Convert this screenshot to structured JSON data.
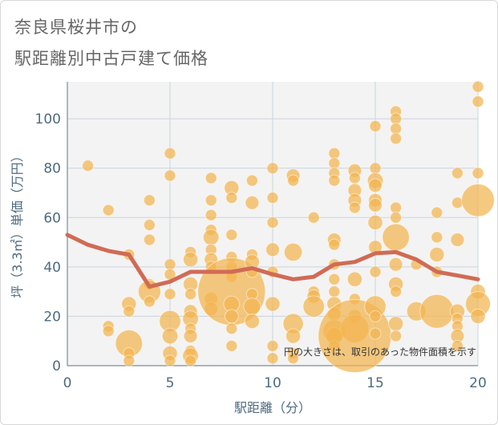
{
  "header": {
    "title_line1": "奈良県桜井市の",
    "title_line2": "駅距離別中古戸建て価格"
  },
  "chart_data": {
    "type": "scatter",
    "title": "奈良県桜井市の駅距離別中古戸建て価格",
    "xlabel": "駅距離（分）",
    "ylabel": "坪（3.3㎡）単価（万円）",
    "xlim": [
      0,
      20
    ],
    "ylim": [
      0,
      115
    ],
    "x_ticks": [
      0,
      5,
      10,
      15,
      20
    ],
    "y_ticks": [
      0,
      20,
      40,
      60,
      80,
      100
    ],
    "grid": true,
    "note": "円の大きさは、取引のあった物件面積を示す",
    "colors": {
      "bubble": "#f2b44f",
      "line": "#d06b55",
      "plot_bg": "#f3f3f3",
      "grid": "#c9d5de"
    },
    "bubbles": [
      {
        "x": 1,
        "y": 81,
        "s": 1
      },
      {
        "x": 2,
        "y": 63,
        "s": 1
      },
      {
        "x": 2,
        "y": 16,
        "s": 1
      },
      {
        "x": 2,
        "y": 14,
        "s": 1
      },
      {
        "x": 3,
        "y": 45,
        "s": 1
      },
      {
        "x": 3,
        "y": 25,
        "s": 1.3
      },
      {
        "x": 3,
        "y": 22,
        "s": 1
      },
      {
        "x": 3,
        "y": 9,
        "s": 2.4
      },
      {
        "x": 3,
        "y": 5,
        "s": 1
      },
      {
        "x": 3,
        "y": 2,
        "s": 1
      },
      {
        "x": 4,
        "y": 67,
        "s": 1
      },
      {
        "x": 4,
        "y": 57,
        "s": 1
      },
      {
        "x": 4,
        "y": 51,
        "s": 1
      },
      {
        "x": 4,
        "y": 33,
        "s": 1
      },
      {
        "x": 4,
        "y": 30,
        "s": 2.0
      },
      {
        "x": 4,
        "y": 26,
        "s": 1
      },
      {
        "x": 5,
        "y": 86,
        "s": 1
      },
      {
        "x": 5,
        "y": 77,
        "s": 1
      },
      {
        "x": 5,
        "y": 41,
        "s": 1
      },
      {
        "x": 5,
        "y": 37,
        "s": 1
      },
      {
        "x": 5,
        "y": 29,
        "s": 1
      },
      {
        "x": 5,
        "y": 18,
        "s": 1.9
      },
      {
        "x": 5,
        "y": 12,
        "s": 1.4
      },
      {
        "x": 5,
        "y": 5,
        "s": 1.3
      },
      {
        "x": 5,
        "y": 2,
        "s": 1
      },
      {
        "x": 6,
        "y": 46,
        "s": 1
      },
      {
        "x": 6,
        "y": 43,
        "s": 1.3
      },
      {
        "x": 6,
        "y": 33,
        "s": 1.3
      },
      {
        "x": 6,
        "y": 29,
        "s": 1
      },
      {
        "x": 6,
        "y": 22,
        "s": 1.2
      },
      {
        "x": 6,
        "y": 19,
        "s": 1.4
      },
      {
        "x": 6,
        "y": 15,
        "s": 1
      },
      {
        "x": 6,
        "y": 12,
        "s": 1.2
      },
      {
        "x": 6,
        "y": 6,
        "s": 1
      },
      {
        "x": 6,
        "y": 4,
        "s": 1.4
      },
      {
        "x": 6,
        "y": 2,
        "s": 1
      },
      {
        "x": 7,
        "y": 76,
        "s": 1
      },
      {
        "x": 7,
        "y": 67,
        "s": 1
      },
      {
        "x": 7,
        "y": 61,
        "s": 1
      },
      {
        "x": 7,
        "y": 55,
        "s": 1
      },
      {
        "x": 7,
        "y": 52,
        "s": 1.4
      },
      {
        "x": 7,
        "y": 47,
        "s": 1
      },
      {
        "x": 7,
        "y": 43,
        "s": 1.2
      },
      {
        "x": 7,
        "y": 40,
        "s": 1
      },
      {
        "x": 7,
        "y": 27,
        "s": 1.2
      },
      {
        "x": 7,
        "y": 23,
        "s": 1.2
      },
      {
        "x": 8,
        "y": 72,
        "s": 1.3
      },
      {
        "x": 8,
        "y": 68,
        "s": 1
      },
      {
        "x": 8,
        "y": 53,
        "s": 1
      },
      {
        "x": 8,
        "y": 44,
        "s": 1
      },
      {
        "x": 8,
        "y": 40,
        "s": 1
      },
      {
        "x": 8,
        "y": 36,
        "s": 1
      },
      {
        "x": 8,
        "y": 30,
        "s": 6.0
      },
      {
        "x": 8,
        "y": 25,
        "s": 1.4
      },
      {
        "x": 8,
        "y": 20,
        "s": 1.2
      },
      {
        "x": 8,
        "y": 15,
        "s": 1
      },
      {
        "x": 8,
        "y": 8,
        "s": 1
      },
      {
        "x": 9,
        "y": 75,
        "s": 1
      },
      {
        "x": 9,
        "y": 66,
        "s": 1.2
      },
      {
        "x": 9,
        "y": 45,
        "s": 1
      },
      {
        "x": 9,
        "y": 42,
        "s": 1.3
      },
      {
        "x": 9,
        "y": 38,
        "s": 1
      },
      {
        "x": 9,
        "y": 29,
        "s": 1
      },
      {
        "x": 9,
        "y": 24,
        "s": 1.5
      },
      {
        "x": 9,
        "y": 18,
        "s": 1.3
      },
      {
        "x": 10,
        "y": 80,
        "s": 1
      },
      {
        "x": 10,
        "y": 68,
        "s": 1
      },
      {
        "x": 10,
        "y": 58,
        "s": 1
      },
      {
        "x": 10,
        "y": 47,
        "s": 1.2
      },
      {
        "x": 10,
        "y": 38,
        "s": 1
      },
      {
        "x": 10,
        "y": 25,
        "s": 1.3
      },
      {
        "x": 10,
        "y": 8,
        "s": 1
      },
      {
        "x": 10,
        "y": 3,
        "s": 1
      },
      {
        "x": 11,
        "y": 77,
        "s": 1.2
      },
      {
        "x": 11,
        "y": 75,
        "s": 1
      },
      {
        "x": 11,
        "y": 46,
        "s": 1.6
      },
      {
        "x": 11,
        "y": 17,
        "s": 1.8
      },
      {
        "x": 11,
        "y": 12,
        "s": 1.3
      },
      {
        "x": 11,
        "y": 5,
        "s": 1
      },
      {
        "x": 11,
        "y": 3,
        "s": 1
      },
      {
        "x": 12,
        "y": 60,
        "s": 1
      },
      {
        "x": 12,
        "y": 30,
        "s": 1
      },
      {
        "x": 12,
        "y": 28,
        "s": 1.2
      },
      {
        "x": 12,
        "y": 24,
        "s": 1.9
      },
      {
        "x": 13,
        "y": 86,
        "s": 1
      },
      {
        "x": 13,
        "y": 82,
        "s": 1
      },
      {
        "x": 13,
        "y": 78,
        "s": 1
      },
      {
        "x": 13,
        "y": 75,
        "s": 1
      },
      {
        "x": 13,
        "y": 51,
        "s": 1.2
      },
      {
        "x": 13,
        "y": 49,
        "s": 1
      },
      {
        "x": 13,
        "y": 41,
        "s": 1
      },
      {
        "x": 13,
        "y": 35,
        "s": 1
      },
      {
        "x": 13,
        "y": 30,
        "s": 1
      },
      {
        "x": 13,
        "y": 25,
        "s": 1.3
      },
      {
        "x": 13,
        "y": 21,
        "s": 1.2
      },
      {
        "x": 13,
        "y": 14,
        "s": 2.0
      },
      {
        "x": 13,
        "y": 12,
        "s": 1.5
      },
      {
        "x": 13,
        "y": 8,
        "s": 1
      },
      {
        "x": 14,
        "y": 79,
        "s": 1.2
      },
      {
        "x": 14,
        "y": 76,
        "s": 1
      },
      {
        "x": 14,
        "y": 71,
        "s": 1.2
      },
      {
        "x": 14,
        "y": 67,
        "s": 1.2
      },
      {
        "x": 14,
        "y": 64,
        "s": 1
      },
      {
        "x": 14,
        "y": 35,
        "s": 1.3
      },
      {
        "x": 14,
        "y": 27,
        "s": 1
      },
      {
        "x": 14,
        "y": 20,
        "s": 1.2
      },
      {
        "x": 14,
        "y": 15,
        "s": 2.5
      },
      {
        "x": 14,
        "y": 12,
        "s": 6.5
      },
      {
        "x": 15,
        "y": 97,
        "s": 1
      },
      {
        "x": 15,
        "y": 80,
        "s": 1
      },
      {
        "x": 15,
        "y": 75,
        "s": 1.4
      },
      {
        "x": 15,
        "y": 73,
        "s": 1.2
      },
      {
        "x": 15,
        "y": 67,
        "s": 1.2
      },
      {
        "x": 15,
        "y": 65,
        "s": 1.2
      },
      {
        "x": 15,
        "y": 58,
        "s": 1.3
      },
      {
        "x": 15,
        "y": 48,
        "s": 1.2
      },
      {
        "x": 15,
        "y": 38,
        "s": 1
      },
      {
        "x": 15,
        "y": 24,
        "s": 1.9
      },
      {
        "x": 15,
        "y": 20,
        "s": 1
      },
      {
        "x": 15,
        "y": 13,
        "s": 1
      },
      {
        "x": 16,
        "y": 103,
        "s": 1
      },
      {
        "x": 16,
        "y": 100,
        "s": 1
      },
      {
        "x": 16,
        "y": 96,
        "s": 1
      },
      {
        "x": 16,
        "y": 92,
        "s": 1
      },
      {
        "x": 16,
        "y": 64,
        "s": 1
      },
      {
        "x": 16,
        "y": 60,
        "s": 1
      },
      {
        "x": 16,
        "y": 52,
        "s": 2.4
      },
      {
        "x": 16,
        "y": 41,
        "s": 1.2
      },
      {
        "x": 16,
        "y": 33,
        "s": 1.3
      },
      {
        "x": 16,
        "y": 30,
        "s": 1
      },
      {
        "x": 16,
        "y": 17,
        "s": 1.3
      },
      {
        "x": 16,
        "y": 12,
        "s": 1
      },
      {
        "x": 17,
        "y": 41,
        "s": 1
      },
      {
        "x": 17,
        "y": 22,
        "s": 1.7
      },
      {
        "x": 18,
        "y": 62,
        "s": 1
      },
      {
        "x": 18,
        "y": 52,
        "s": 1
      },
      {
        "x": 18,
        "y": 45,
        "s": 1.3
      },
      {
        "x": 18,
        "y": 38,
        "s": 1
      },
      {
        "x": 18,
        "y": 22,
        "s": 3.0
      },
      {
        "x": 19,
        "y": 78,
        "s": 1
      },
      {
        "x": 19,
        "y": 66,
        "s": 1
      },
      {
        "x": 19,
        "y": 51,
        "s": 1.2
      },
      {
        "x": 19,
        "y": 22,
        "s": 1.3
      },
      {
        "x": 19,
        "y": 19,
        "s": 1
      },
      {
        "x": 19,
        "y": 16,
        "s": 1
      },
      {
        "x": 19,
        "y": 12,
        "s": 1.2
      },
      {
        "x": 19,
        "y": 8,
        "s": 1
      },
      {
        "x": 20,
        "y": 113,
        "s": 1
      },
      {
        "x": 20,
        "y": 107,
        "s": 1
      },
      {
        "x": 20,
        "y": 78,
        "s": 1
      },
      {
        "x": 20,
        "y": 67,
        "s": 2.9
      },
      {
        "x": 20,
        "y": 30,
        "s": 1.3
      },
      {
        "x": 20,
        "y": 25,
        "s": 2.2
      },
      {
        "x": 20,
        "y": 20,
        "s": 1.3
      }
    ],
    "trend": {
      "x": [
        0,
        1,
        2,
        3,
        4,
        5,
        6,
        7,
        8,
        9,
        10,
        11,
        12,
        13,
        14,
        15,
        16,
        17,
        18,
        19,
        20
      ],
      "y": [
        53,
        49,
        46.5,
        45,
        32,
        34,
        38,
        38,
        38,
        39.5,
        37,
        35,
        36,
        41,
        42,
        45.5,
        46,
        43,
        38,
        36.5,
        35
      ]
    }
  }
}
